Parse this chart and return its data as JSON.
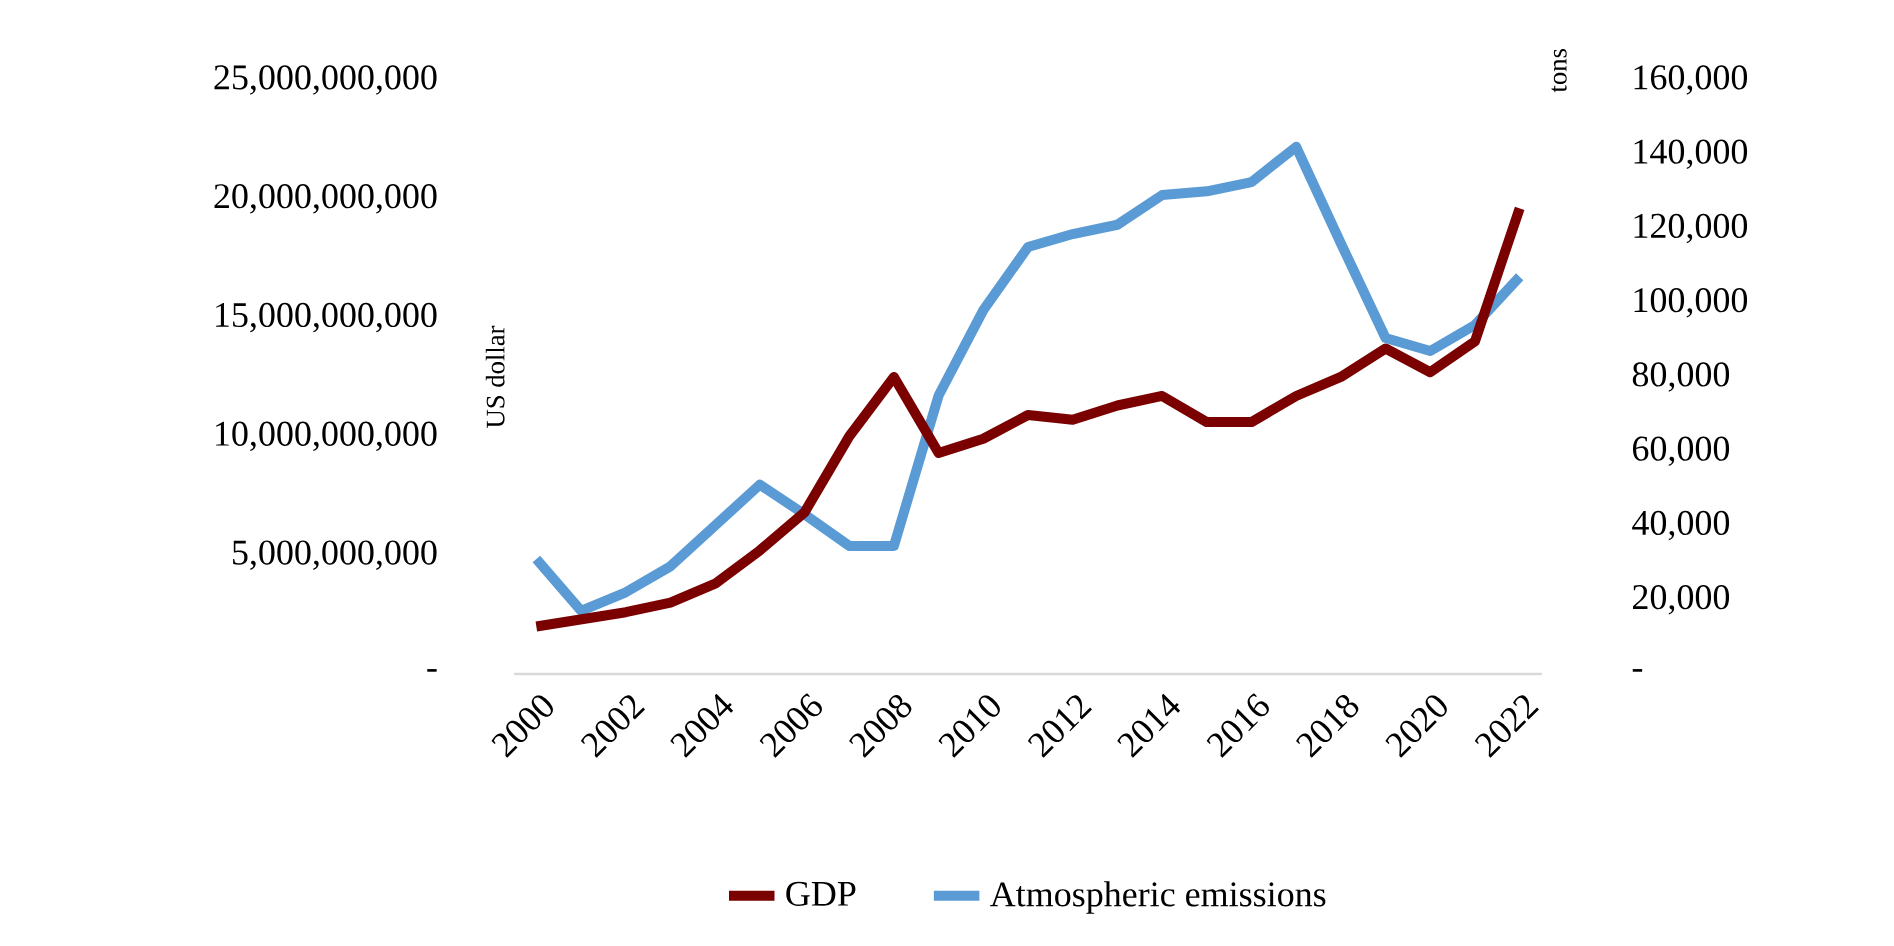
{
  "chart_data": {
    "type": "line",
    "ylabel": "US dollar",
    "y2label": "tons",
    "categories": [
      "2000",
      null,
      "2002",
      null,
      "2004",
      null,
      "2006",
      null,
      "2008",
      null,
      "2010",
      null,
      "2012",
      null,
      "2014",
      null,
      "2016",
      null,
      "2018",
      null,
      "2020",
      null,
      "2022"
    ],
    "series": [
      {
        "name": "GDP",
        "color": "#7b0000",
        "values": [
          2000000000,
          2300000000,
          2600000000,
          3000000000,
          3800000000,
          5200000000,
          6800000000,
          10000000000,
          12500000000,
          9300000000,
          9900000000,
          10900000000,
          10700000000,
          11300000000,
          11700000000,
          10600000000,
          10600000000,
          11700000000,
          12500000000,
          13700000000,
          12700000000,
          14000000000,
          19600000000
        ]
      },
      {
        "name": "Atmospheric emissions",
        "color": "#5b9bd5",
        "axis": "y2",
        "values": [
          31000,
          17000,
          22000,
          29000,
          40000,
          51000,
          43000,
          34500,
          34500,
          75000,
          98000,
          115000,
          118500,
          121000,
          129000,
          130000,
          132500,
          142000,
          116000,
          90500,
          87000,
          94000,
          107000
        ]
      }
    ],
    "ylim": [
      0,
      25000000000
    ],
    "yticks": [
      {
        "value": 0,
        "label": "-"
      },
      {
        "value": 5000000000,
        "label": "5,000,000,000"
      },
      {
        "value": 10000000000,
        "label": "10,000,000,000"
      },
      {
        "value": 15000000000,
        "label": "15,000,000,000"
      },
      {
        "value": 20000000000,
        "label": "20,000,000,000"
      },
      {
        "value": 25000000000,
        "label": "25,000,000,000"
      }
    ],
    "y2lim": [
      0,
      160000
    ],
    "y2ticks": [
      {
        "value": 0,
        "label": "-"
      },
      {
        "value": 20000,
        "label": "20,000"
      },
      {
        "value": 40000,
        "label": "40,000"
      },
      {
        "value": 60000,
        "label": "60,000"
      },
      {
        "value": 80000,
        "label": "80,000"
      },
      {
        "value": 100000,
        "label": "100,000"
      },
      {
        "value": 120000,
        "label": "120,000"
      },
      {
        "value": 140000,
        "label": "140,000"
      },
      {
        "value": 160000,
        "label": "160,000"
      }
    ],
    "grid": false,
    "legend": "bottom",
    "marker": "none",
    "line_style": "solid"
  }
}
